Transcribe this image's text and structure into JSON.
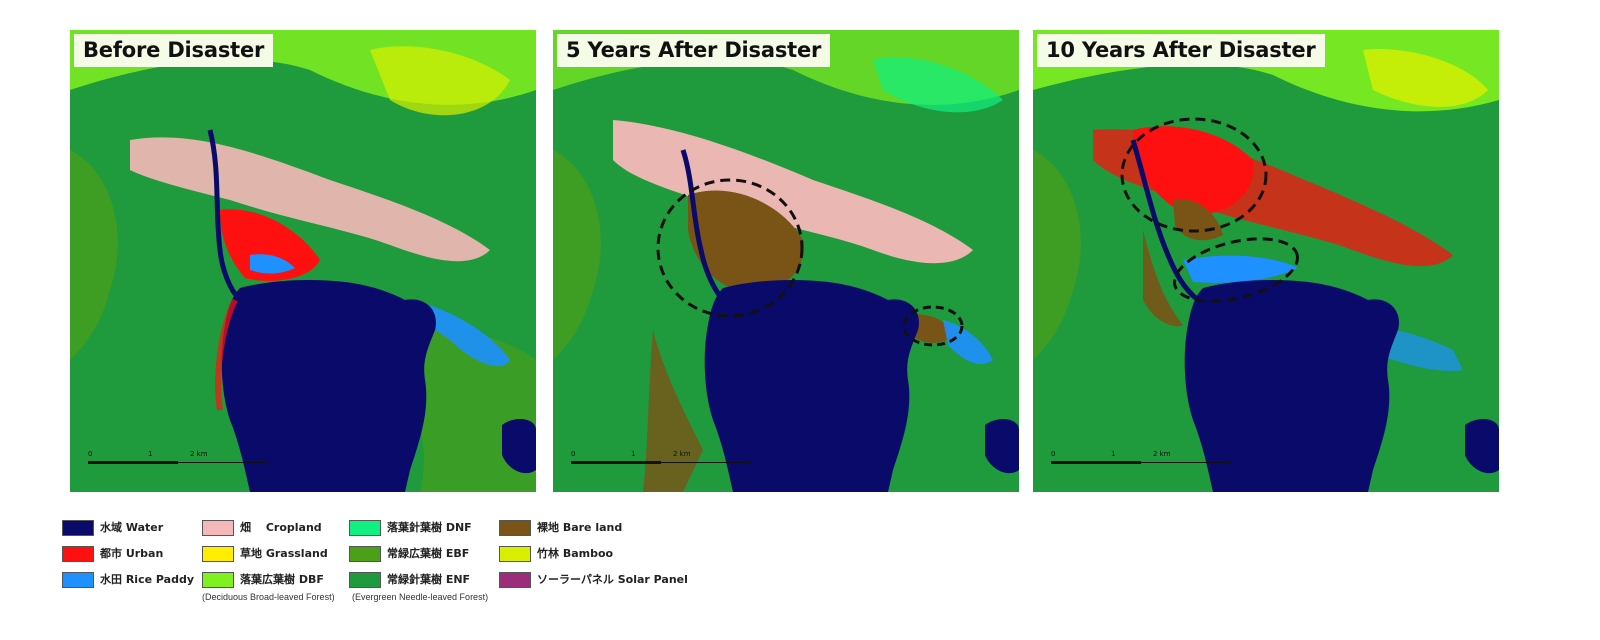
{
  "panels": [
    {
      "title": "Before Disaster",
      "scale": {
        "ticks": [
          "0",
          "1",
          "2 km"
        ]
      }
    },
    {
      "title": "5 Years After Disaster",
      "scale": {
        "ticks": [
          "0",
          "1",
          "2 km"
        ]
      }
    },
    {
      "title": "10 Years After Disaster",
      "scale": {
        "ticks": [
          "0",
          "1",
          "2 km"
        ]
      }
    }
  ],
  "legend": {
    "items": [
      {
        "label": "水域 Water",
        "color": "#0a0a6a"
      },
      {
        "label": "都市 Urban",
        "color": "#ff1010"
      },
      {
        "label": "水田 Rice Paddy",
        "color": "#1e90ff"
      },
      {
        "label": "畑　 Cropland",
        "color": "#f5b8b8"
      },
      {
        "label": "草地 Grassland",
        "color": "#ffee00"
      },
      {
        "label": "落葉広葉樹 DBF",
        "color": "#80f020"
      },
      {
        "label": "落葉針葉樹 DNF",
        "color": "#10f080"
      },
      {
        "label": "常緑広葉樹 EBF",
        "color": "#4ca018"
      },
      {
        "label": "常緑針葉樹 ENF",
        "color": "#1f9a3c"
      },
      {
        "label": "裸地 Bare land",
        "color": "#7a5416"
      },
      {
        "label": "竹林 Bamboo",
        "color": "#d8f000"
      },
      {
        "label": "ソーラーパネル Solar Panel",
        "color": "#9c2d7a"
      }
    ],
    "notes": {
      "dbf": "(Deciduous Broad-leaved Forest)",
      "enf": "(Evergreen Needle-leaved Forest)"
    }
  }
}
